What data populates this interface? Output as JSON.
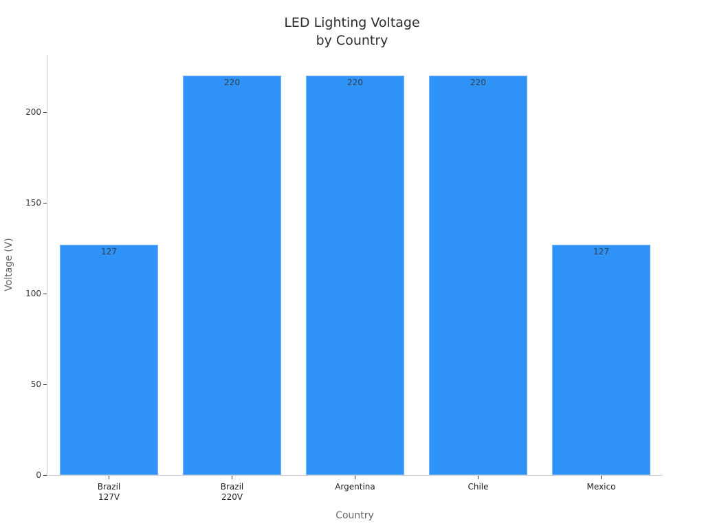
{
  "chart_data": {
    "type": "bar",
    "title": "LED Lighting Voltage\nby Country",
    "title_lines": [
      "LED Lighting Voltage",
      "by Country"
    ],
    "xlabel": "Country",
    "ylabel": "Voltage (V)",
    "categories": [
      "Brazil\n127V",
      "Brazil\n220V",
      "Argentina",
      "Chile",
      "Mexico"
    ],
    "values": [
      127,
      220,
      220,
      220,
      127
    ],
    "data_labels": [
      "127",
      "220",
      "220",
      "220",
      "127"
    ],
    "ylim": [
      0,
      232
    ],
    "yticks": [
      0,
      50,
      100,
      150,
      200
    ],
    "grid": false,
    "legend": null,
    "bar_color": "#2f92f7"
  }
}
